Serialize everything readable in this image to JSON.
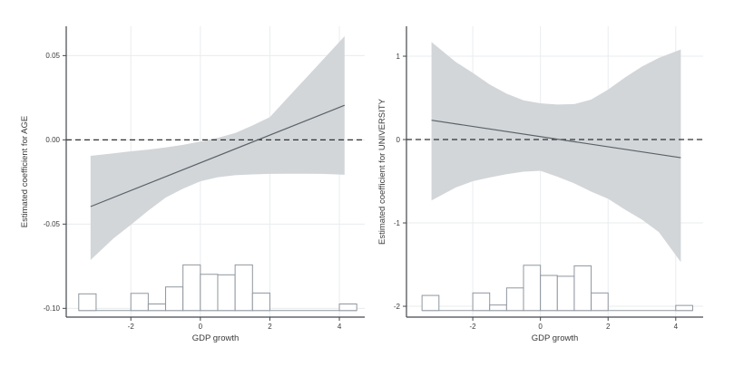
{
  "figure": {
    "description": "Two-panel marginal effects plot with confidence bands and GDP growth histograms"
  },
  "colors": {
    "background": "#ffffff",
    "band": "#d2d6d9",
    "line": "#5a6268",
    "dashed": "#303030",
    "grid": "#eaeced",
    "spine": "#43484c",
    "bar_fill": "#ffffff",
    "bar_stroke": "#8f979e",
    "text": "#3a3a3a"
  },
  "chart_data": [
    {
      "type": "line",
      "title": "",
      "xlabel": "GDP growth",
      "ylabel": "Estimated coefficient for AGE",
      "xlim": [
        -3.86,
        4.73
      ],
      "ylim": [
        -0.1052,
        0.0674
      ],
      "grid": true,
      "legend": "none",
      "xticks": {
        "values": [
          -2,
          0,
          2,
          4
        ],
        "labels": [
          "-2",
          "0",
          "2",
          "4"
        ]
      },
      "yticks": {
        "values": [
          0.05,
          0.0,
          -0.05,
          -0.1
        ],
        "labels": [
          "0.05",
          "0.00",
          "-0.05",
          "-0.10"
        ]
      },
      "zero_line": 0,
      "series": [
        {
          "name": "marginal-effect-line",
          "type": "line",
          "x": [
            -3.16,
            4.15
          ],
          "y": [
            -0.0396,
            0.0205
          ]
        },
        {
          "name": "confidence-band",
          "type": "band",
          "x": [
            -3.16,
            -2.5,
            -2.0,
            -1.5,
            -1.0,
            -0.5,
            0.0,
            0.5,
            1.0,
            1.5,
            2.0,
            2.5,
            3.0,
            3.5,
            4.15
          ],
          "upper": [
            -0.0095,
            -0.008,
            -0.0068,
            -0.0058,
            -0.0045,
            -0.003,
            -0.001,
            0.0012,
            0.004,
            0.0085,
            0.0135,
            0.0247,
            0.0358,
            0.047,
            0.0615
          ],
          "lower": [
            -0.0713,
            -0.0585,
            -0.0504,
            -0.042,
            -0.0343,
            -0.029,
            -0.0246,
            -0.0222,
            -0.021,
            -0.0205,
            -0.0202,
            -0.0201,
            -0.0201,
            -0.0202,
            -0.0207
          ]
        }
      ],
      "histogram": {
        "baseline": -0.1013,
        "bins": [
          {
            "x0": -3.5,
            "x1": -3.0,
            "top": -0.0914
          },
          {
            "x0": -2.0,
            "x1": -1.5,
            "top": -0.0911
          },
          {
            "x0": -1.5,
            "x1": -1.0,
            "top": -0.0974
          },
          {
            "x0": -1.0,
            "x1": -0.5,
            "top": -0.0873
          },
          {
            "x0": -0.5,
            "x1": 0.0,
            "top": -0.0742
          },
          {
            "x0": 0.0,
            "x1": 0.5,
            "top": -0.0798
          },
          {
            "x0": 0.5,
            "x1": 1.0,
            "top": -0.0801
          },
          {
            "x0": 1.0,
            "x1": 1.5,
            "top": -0.0742
          },
          {
            "x0": 1.5,
            "x1": 2.0,
            "top": -0.0909
          },
          {
            "x0": 4.0,
            "x1": 4.5,
            "top": -0.0974
          }
        ]
      }
    },
    {
      "type": "line",
      "title": "",
      "xlabel": "GDP growth",
      "ylabel": "Estimated coefficient for UNIVERSITY",
      "xlim": [
        -3.96,
        4.81
      ],
      "ylim": [
        -2.13,
        1.359
      ],
      "grid": true,
      "legend": "none",
      "xticks": {
        "values": [
          -2,
          0,
          2,
          4
        ],
        "labels": [
          "-2",
          "0",
          "2",
          "4"
        ]
      },
      "yticks": {
        "values": [
          1,
          0,
          -1,
          -2
        ],
        "labels": [
          "1",
          "0",
          "-1",
          "-2"
        ]
      },
      "zero_line": 0,
      "series": [
        {
          "name": "marginal-effect-line",
          "type": "line",
          "x": [
            -3.22,
            4.15
          ],
          "y": [
            0.232,
            -0.218
          ]
        },
        {
          "name": "confidence-band",
          "type": "band",
          "x": [
            -3.22,
            -2.5,
            -2.0,
            -1.5,
            -1.0,
            -0.5,
            0.0,
            0.5,
            1.0,
            1.5,
            2.0,
            2.5,
            3.0,
            3.5,
            4.15
          ],
          "upper": [
            1.17,
            0.93,
            0.8,
            0.66,
            0.55,
            0.47,
            0.435,
            0.42,
            0.425,
            0.48,
            0.6,
            0.745,
            0.875,
            0.98,
            1.08
          ],
          "lower": [
            -0.73,
            -0.575,
            -0.5,
            -0.455,
            -0.415,
            -0.385,
            -0.375,
            -0.445,
            -0.525,
            -0.625,
            -0.71,
            -0.84,
            -0.96,
            -1.11,
            -1.47
          ]
        }
      ],
      "histogram": {
        "baseline": -2.051,
        "bins": [
          {
            "x0": -3.5,
            "x1": -3.0,
            "top": -1.87
          },
          {
            "x0": -2.0,
            "x1": -1.5,
            "top": -1.84
          },
          {
            "x0": -1.5,
            "x1": -1.0,
            "top": -1.985
          },
          {
            "x0": -1.0,
            "x1": -0.5,
            "top": -1.78
          },
          {
            "x0": -0.5,
            "x1": 0.0,
            "top": -1.508
          },
          {
            "x0": 0.0,
            "x1": 0.5,
            "top": -1.63
          },
          {
            "x0": 0.5,
            "x1": 1.0,
            "top": -1.64
          },
          {
            "x0": 1.0,
            "x1": 1.5,
            "top": -1.515
          },
          {
            "x0": 1.5,
            "x1": 2.0,
            "top": -1.84
          },
          {
            "x0": 4.0,
            "x1": 4.5,
            "top": -1.99
          }
        ]
      }
    }
  ]
}
